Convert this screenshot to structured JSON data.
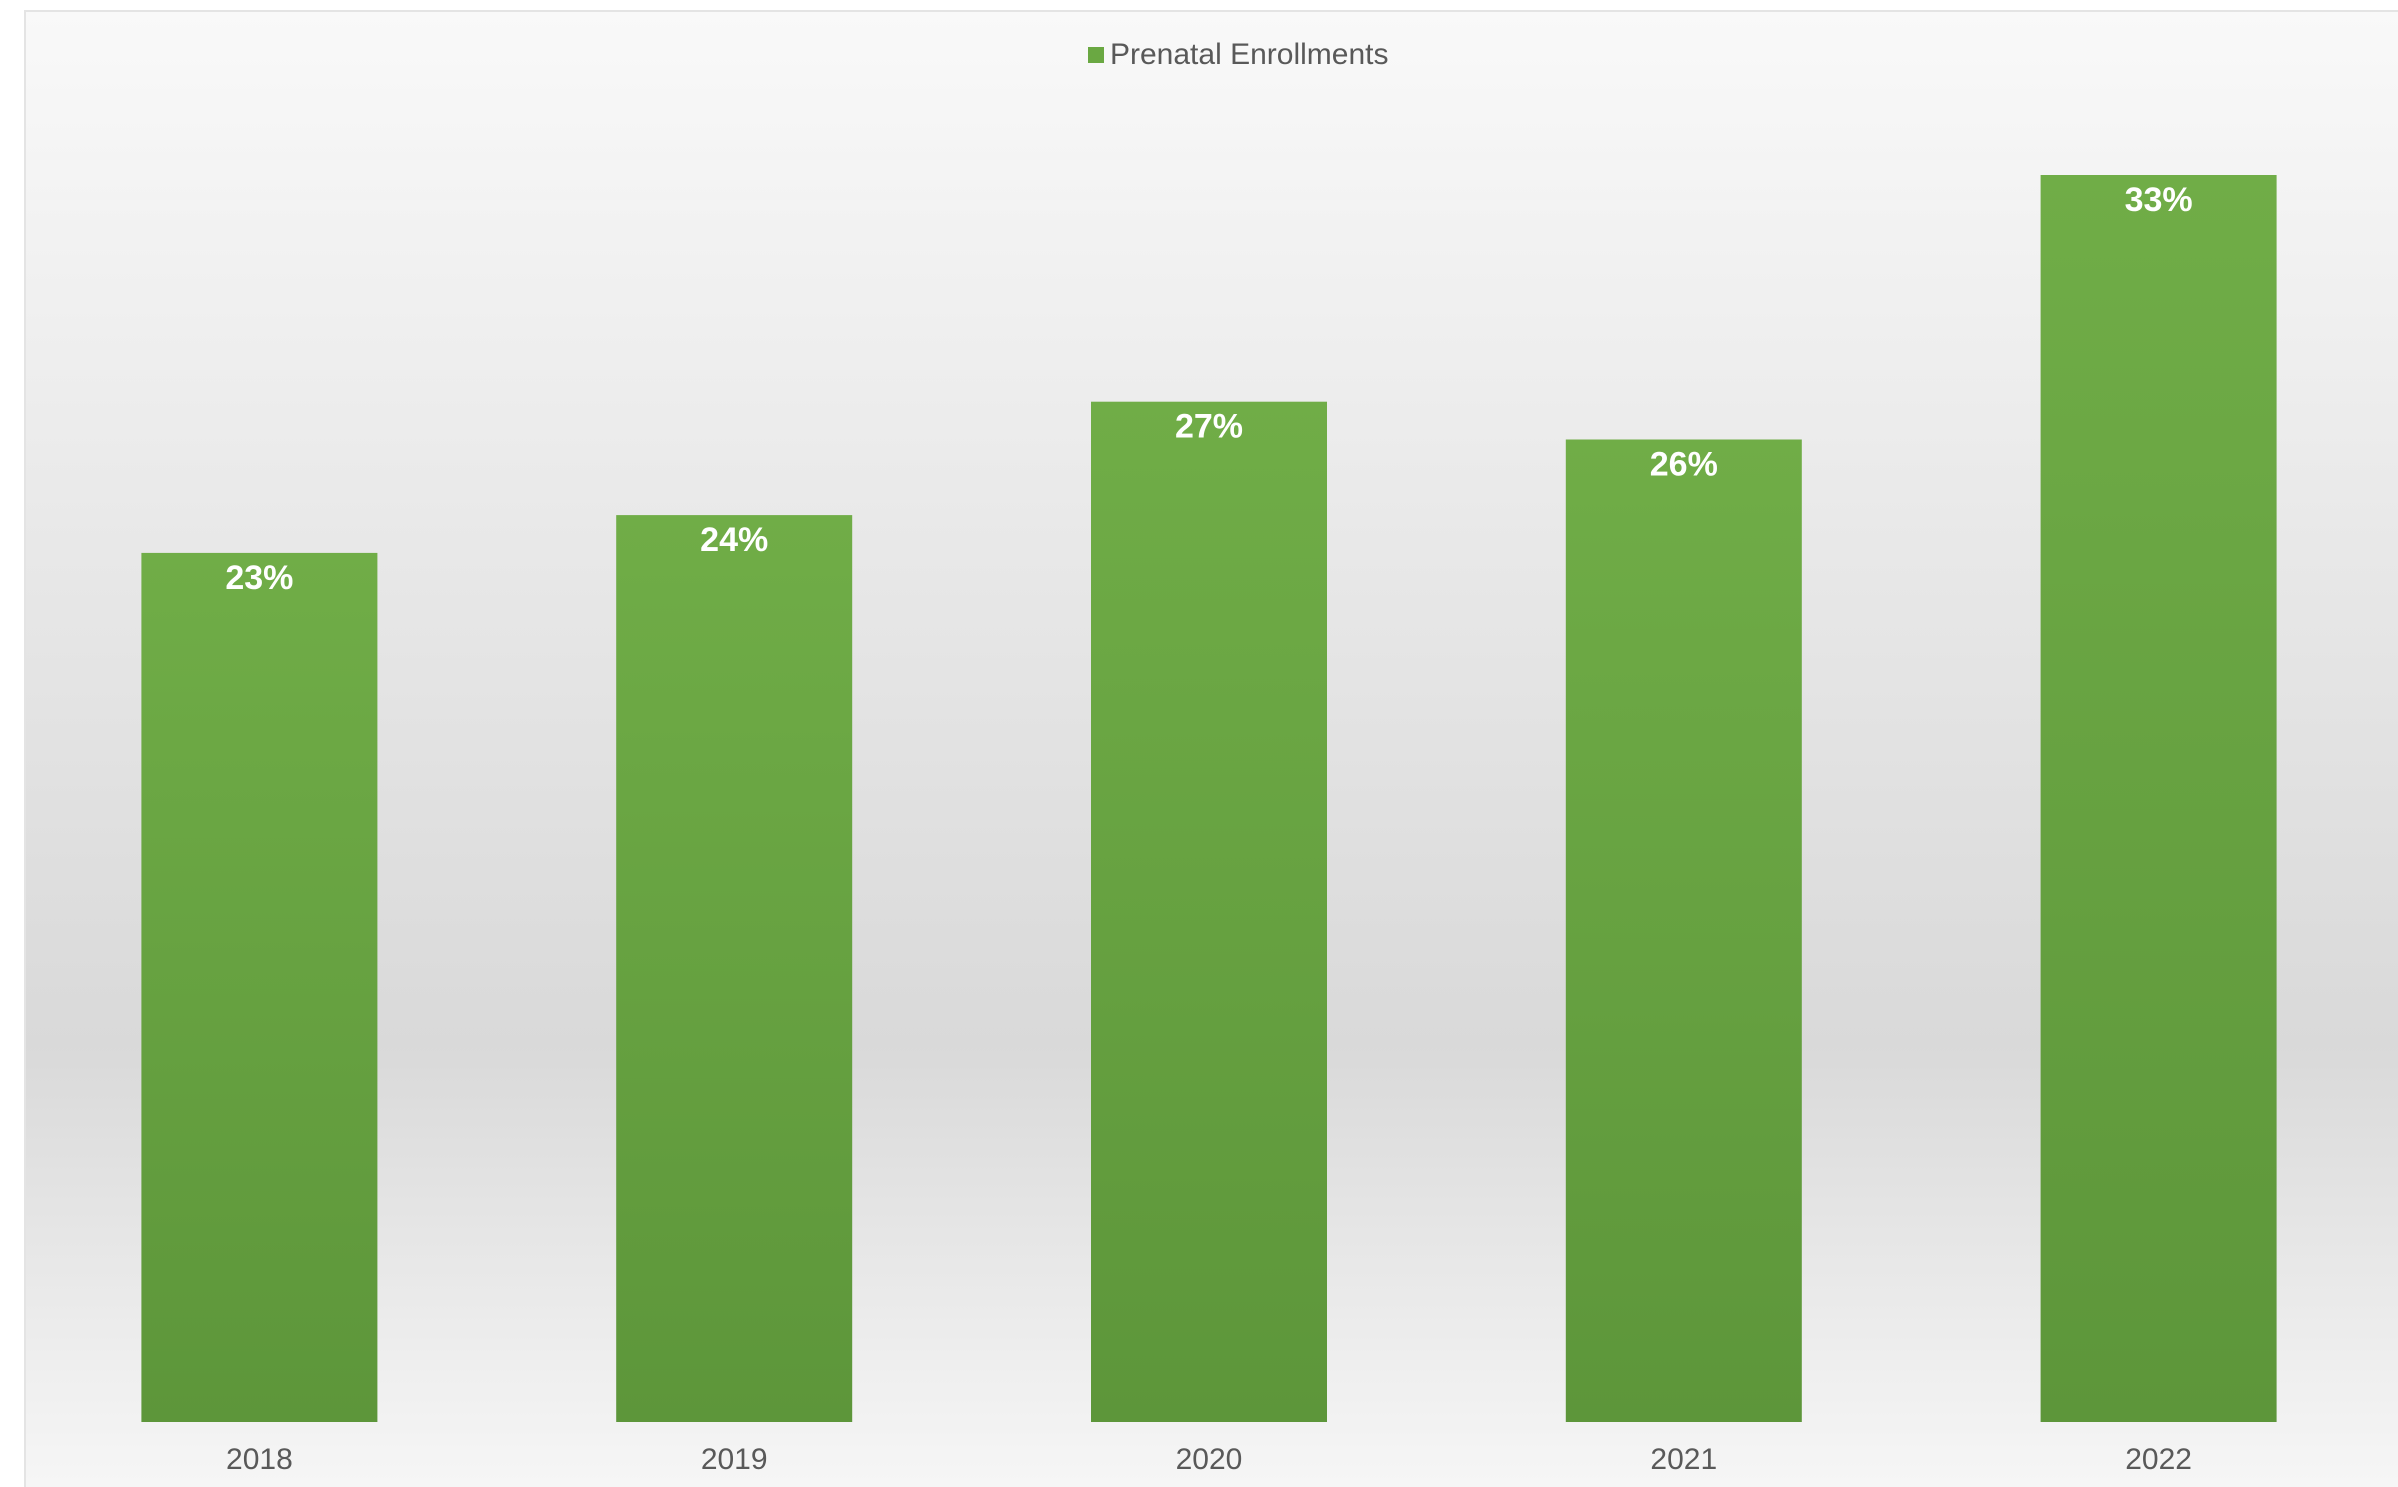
{
  "chart_data": {
    "type": "bar",
    "title": "",
    "xlabel": "",
    "ylabel": "",
    "categories": [
      "2018",
      "2019",
      "2020",
      "2021",
      "2022"
    ],
    "series": [
      {
        "name": "Prenatal Enrollments",
        "values": [
          23,
          24,
          27,
          26,
          33
        ],
        "labels": [
          "23%",
          "24%",
          "27%",
          "26%",
          "33%"
        ],
        "color": "#6aa842"
      }
    ],
    "ylim": [
      0,
      38
    ],
    "grid": false,
    "legend_position": "top-center",
    "background": "gradient-gray"
  }
}
